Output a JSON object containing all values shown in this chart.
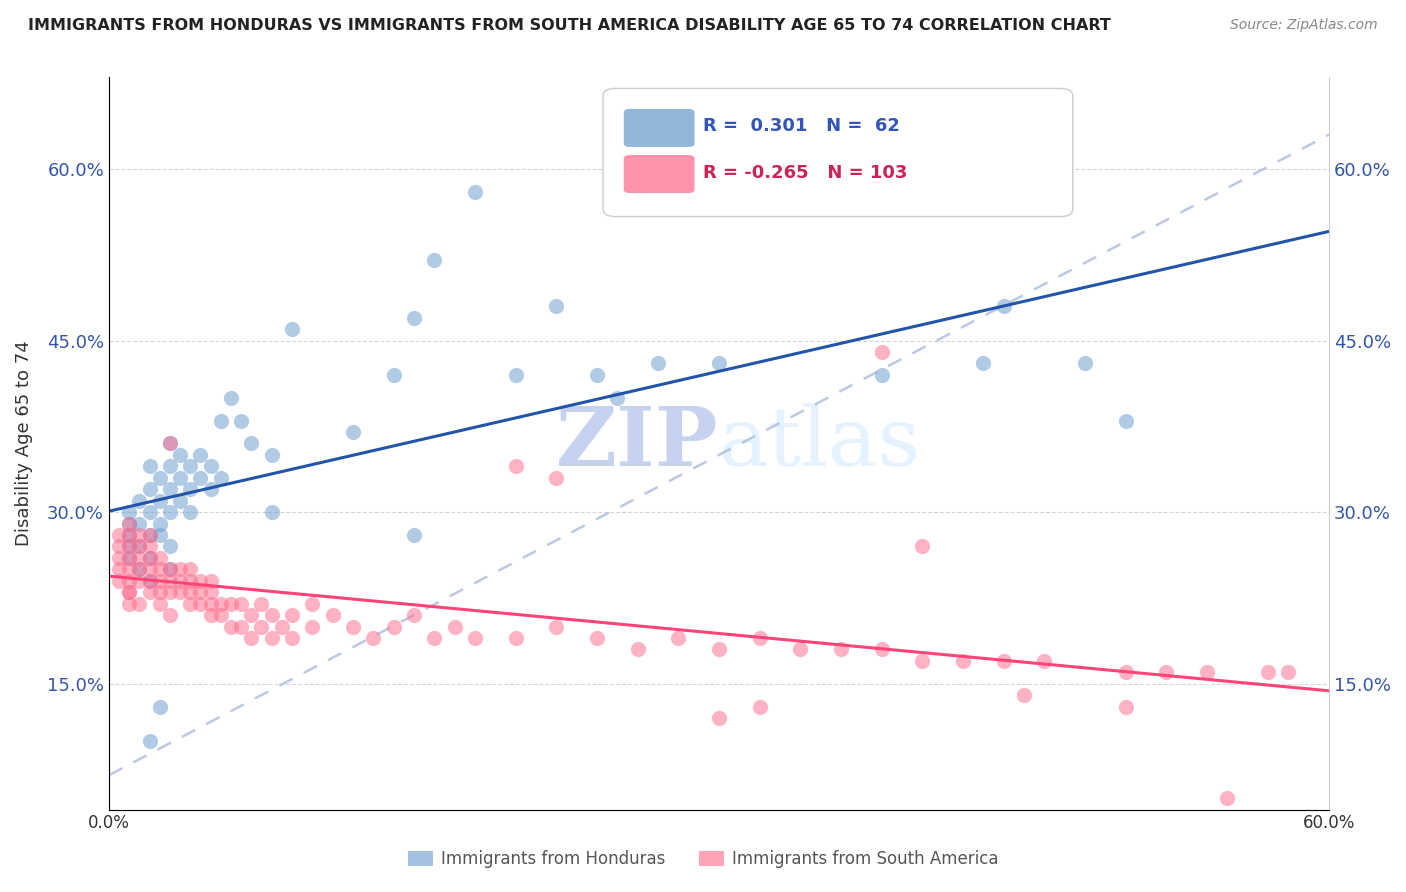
{
  "title": "IMMIGRANTS FROM HONDURAS VS IMMIGRANTS FROM SOUTH AMERICA DISABILITY AGE 65 TO 74 CORRELATION CHART",
  "source": "Source: ZipAtlas.com",
  "ylabel": "Disability Age 65 to 74",
  "ytick_labels": [
    "15.0%",
    "30.0%",
    "45.0%",
    "60.0%"
  ],
  "ytick_values": [
    0.15,
    0.3,
    0.45,
    0.6
  ],
  "xlim": [
    0.0,
    0.6
  ],
  "ylim": [
    0.04,
    0.68
  ],
  "r_blue": 0.301,
  "n_blue": 62,
  "r_pink": -0.265,
  "n_pink": 103,
  "legend_label_blue": "Immigrants from Honduras",
  "legend_label_pink": "Immigrants from South America",
  "color_blue": "#6699CC",
  "color_pink": "#FF6688",
  "color_blue_line": "#2255AA",
  "color_pink_line": "#FF4477",
  "color_dashed": "#AABBDD",
  "watermark_zip": "ZIP",
  "watermark_atlas": "atlas",
  "blue_x": [
    0.01,
    0.01,
    0.01,
    0.01,
    0.01,
    0.015,
    0.015,
    0.015,
    0.015,
    0.02,
    0.02,
    0.02,
    0.02,
    0.02,
    0.02,
    0.025,
    0.025,
    0.025,
    0.025,
    0.03,
    0.03,
    0.03,
    0.03,
    0.03,
    0.035,
    0.035,
    0.035,
    0.04,
    0.04,
    0.04,
    0.045,
    0.045,
    0.05,
    0.05,
    0.055,
    0.055,
    0.06,
    0.065,
    0.07,
    0.08,
    0.09,
    0.12,
    0.14,
    0.15,
    0.16,
    0.18,
    0.2,
    0.22,
    0.24,
    0.27,
    0.3,
    0.38,
    0.43,
    0.44,
    0.48,
    0.5,
    0.02,
    0.025,
    0.03,
    0.08,
    0.15,
    0.25
  ],
  "blue_y": [
    0.26,
    0.27,
    0.28,
    0.29,
    0.3,
    0.25,
    0.27,
    0.29,
    0.31,
    0.24,
    0.26,
    0.28,
    0.3,
    0.32,
    0.34,
    0.28,
    0.29,
    0.31,
    0.33,
    0.27,
    0.3,
    0.32,
    0.34,
    0.36,
    0.31,
    0.33,
    0.35,
    0.3,
    0.32,
    0.34,
    0.33,
    0.35,
    0.32,
    0.34,
    0.33,
    0.38,
    0.4,
    0.38,
    0.36,
    0.35,
    0.46,
    0.37,
    0.42,
    0.47,
    0.52,
    0.58,
    0.42,
    0.48,
    0.42,
    0.43,
    0.43,
    0.42,
    0.43,
    0.48,
    0.43,
    0.38,
    0.1,
    0.13,
    0.25,
    0.3,
    0.28,
    0.4
  ],
  "pink_x": [
    0.005,
    0.005,
    0.005,
    0.005,
    0.005,
    0.01,
    0.01,
    0.01,
    0.01,
    0.01,
    0.01,
    0.01,
    0.01,
    0.01,
    0.015,
    0.015,
    0.015,
    0.015,
    0.015,
    0.015,
    0.02,
    0.02,
    0.02,
    0.02,
    0.02,
    0.02,
    0.025,
    0.025,
    0.025,
    0.025,
    0.025,
    0.03,
    0.03,
    0.03,
    0.03,
    0.03,
    0.035,
    0.035,
    0.035,
    0.04,
    0.04,
    0.04,
    0.04,
    0.045,
    0.045,
    0.045,
    0.05,
    0.05,
    0.05,
    0.05,
    0.055,
    0.055,
    0.06,
    0.06,
    0.065,
    0.065,
    0.07,
    0.07,
    0.075,
    0.075,
    0.08,
    0.08,
    0.085,
    0.09,
    0.09,
    0.1,
    0.1,
    0.11,
    0.12,
    0.13,
    0.14,
    0.15,
    0.16,
    0.17,
    0.18,
    0.2,
    0.22,
    0.24,
    0.26,
    0.28,
    0.3,
    0.32,
    0.34,
    0.36,
    0.38,
    0.4,
    0.42,
    0.44,
    0.46,
    0.5,
    0.52,
    0.54,
    0.57,
    0.58,
    0.38,
    0.4,
    0.2,
    0.22,
    0.3,
    0.32,
    0.45,
    0.5,
    0.55
  ],
  "pink_y": [
    0.24,
    0.25,
    0.26,
    0.27,
    0.28,
    0.22,
    0.23,
    0.24,
    0.25,
    0.26,
    0.27,
    0.28,
    0.29,
    0.23,
    0.24,
    0.25,
    0.26,
    0.27,
    0.28,
    0.22,
    0.23,
    0.24,
    0.25,
    0.26,
    0.27,
    0.28,
    0.23,
    0.24,
    0.25,
    0.26,
    0.22,
    0.23,
    0.24,
    0.25,
    0.21,
    0.36,
    0.23,
    0.24,
    0.25,
    0.22,
    0.23,
    0.24,
    0.25,
    0.22,
    0.23,
    0.24,
    0.21,
    0.22,
    0.23,
    0.24,
    0.21,
    0.22,
    0.2,
    0.22,
    0.2,
    0.22,
    0.19,
    0.21,
    0.2,
    0.22,
    0.19,
    0.21,
    0.2,
    0.19,
    0.21,
    0.2,
    0.22,
    0.21,
    0.2,
    0.19,
    0.2,
    0.21,
    0.19,
    0.2,
    0.19,
    0.19,
    0.2,
    0.19,
    0.18,
    0.19,
    0.18,
    0.19,
    0.18,
    0.18,
    0.18,
    0.17,
    0.17,
    0.17,
    0.17,
    0.16,
    0.16,
    0.16,
    0.16,
    0.16,
    0.44,
    0.27,
    0.34,
    0.33,
    0.12,
    0.13,
    0.14,
    0.13,
    0.05
  ]
}
